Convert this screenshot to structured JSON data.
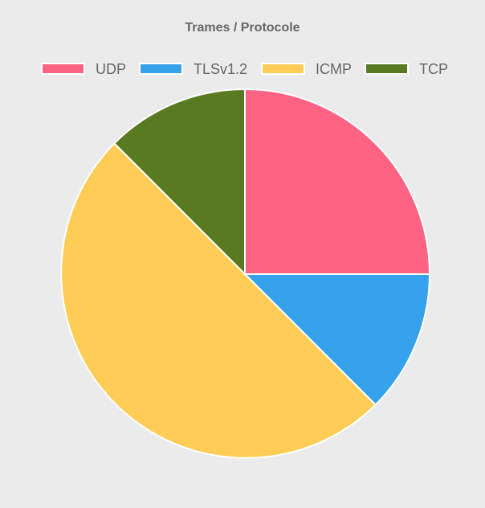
{
  "chart_data": {
    "type": "pie",
    "title": "Trames / Protocole",
    "categories": [
      "UDP",
      "TLSv1.2",
      "ICMP",
      "TCP"
    ],
    "values": [
      2,
      1,
      4,
      1
    ],
    "colors": [
      "#ff6384",
      "#36a2eb",
      "#ffcd56",
      "#5a7a22"
    ],
    "legend_position": "top"
  }
}
